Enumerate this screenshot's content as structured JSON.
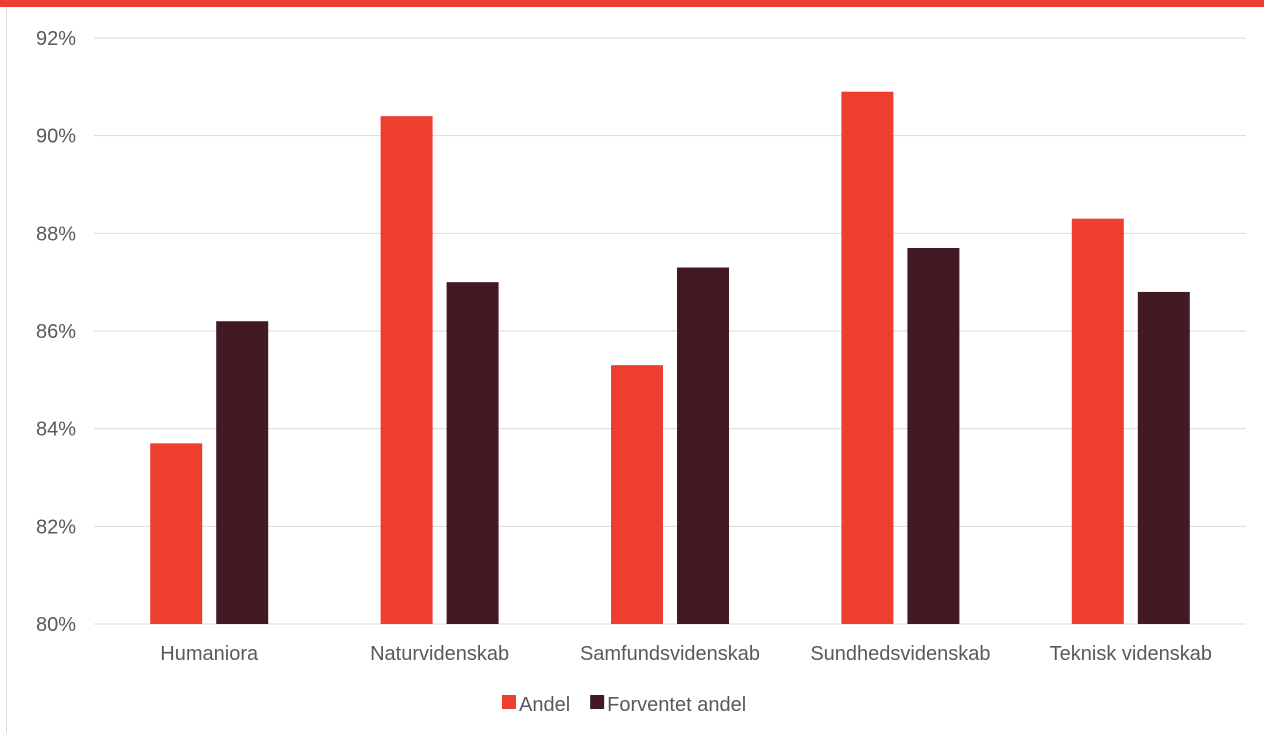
{
  "colors": {
    "top_bar": "#ee3e2f",
    "andel": "#ee3e2f",
    "forventet_andel": "#431a24",
    "grid": "#d9d9d9",
    "text": "#595959"
  },
  "chart_data": {
    "type": "bar",
    "categories": [
      "Humaniora",
      "Naturvidenskab",
      "Samfundsvidenskab",
      "Sundhedsvidenskab",
      "Teknisk videnskab"
    ],
    "series": [
      {
        "name": "Andel",
        "values": [
          83.7,
          90.4,
          85.3,
          90.9,
          88.3
        ]
      },
      {
        "name": "Forventet andel",
        "values": [
          86.2,
          87.0,
          87.3,
          87.7,
          86.8
        ]
      }
    ],
    "ylim": [
      80,
      92
    ],
    "yticks": [
      80,
      82,
      84,
      86,
      88,
      90,
      92
    ],
    "ytick_labels": [
      "80%",
      "82%",
      "84%",
      "86%",
      "88%",
      "90%",
      "92%"
    ],
    "grid": true,
    "legend_position": "bottom"
  }
}
